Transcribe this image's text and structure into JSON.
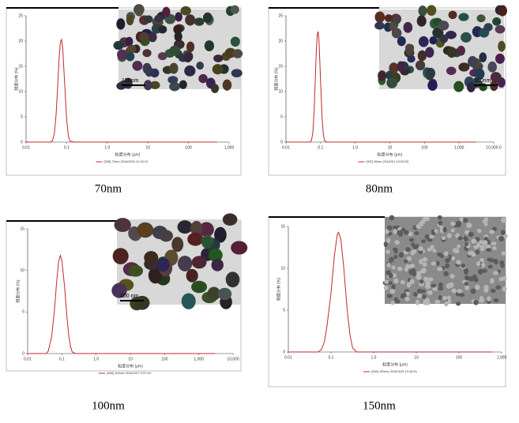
{
  "chart_data": [
    {
      "type": "line",
      "caption": "70nm",
      "x_label": "粒度分布 (μm)",
      "y_label": "频度分布 (%)",
      "inset_label": "100nm",
      "log_x": true,
      "xlim": [
        0.01,
        1000
      ],
      "xticks": [
        0.01,
        0.1,
        {
          "value": 1,
          "label": "1.0"
        },
        10,
        100,
        {
          "value": 1000,
          "label": "1,000"
        }
      ],
      "ylim": [
        0,
        25
      ],
      "yticks": [
        0,
        5,
        10,
        15,
        20,
        25
      ],
      "x": [
        0.01,
        0.04,
        0.045,
        0.05,
        0.055,
        0.06,
        0.065,
        0.07,
        0.075,
        0.08,
        0.09,
        0.1,
        0.11,
        0.12,
        0.15,
        500
      ],
      "series": [
        {
          "name": "[326] 70nm-2016/3/28 12:18:12",
          "color": "#c0282e",
          "values": [
            0,
            0,
            0.3,
            1.8,
            5.5,
            11,
            16.5,
            19.8,
            20.3,
            18.5,
            11,
            4.5,
            1.2,
            0.2,
            0,
            0
          ]
        }
      ]
    },
    {
      "type": "line",
      "caption": "80nm",
      "x_label": "粒度分布 (μm)",
      "y_label": "频度分布 (%)",
      "inset_label": "100nm",
      "log_x": true,
      "xlim": [
        0.01,
        10000
      ],
      "xticks": [
        0.01,
        0.1,
        {
          "value": 1,
          "label": "1.0"
        },
        10,
        100,
        {
          "value": 1000,
          "label": "1,000"
        },
        {
          "value": 10000,
          "label": "10,000.0"
        }
      ],
      "ylim": [
        0,
        25
      ],
      "yticks": [
        0,
        5,
        10,
        15,
        20,
        25
      ],
      "x": [
        0.01,
        0.05,
        0.055,
        0.06,
        0.065,
        0.07,
        0.075,
        0.08,
        0.085,
        0.09,
        0.1,
        0.11,
        0.12,
        0.13,
        0.15,
        3000
      ],
      "series": [
        {
          "name": "[337] 80nm-2016/3/1 10:05:33",
          "color": "#c0282e",
          "values": [
            0,
            0,
            0.4,
            2,
            6,
            12,
            18,
            21.3,
            21.9,
            20,
            12,
            5,
            1.5,
            0.3,
            0,
            0
          ]
        }
      ]
    },
    {
      "type": "line",
      "caption": "100nm",
      "x_label": "粒度分布 (μm)",
      "y_label": "频度分布 (%)",
      "inset_label": "100 nm",
      "log_x": true,
      "xlim": [
        0.01,
        10000
      ],
      "xticks": [
        0.01,
        0.1,
        {
          "value": 1,
          "label": "1.0"
        },
        10,
        100,
        {
          "value": 1000,
          "label": "1,000"
        },
        {
          "value": 10000,
          "label": "10,000"
        }
      ],
      "ylim": [
        0,
        15
      ],
      "yticks": [
        0,
        5,
        10,
        15
      ],
      "x": [
        0.01,
        0.035,
        0.04,
        0.05,
        0.06,
        0.07,
        0.08,
        0.09,
        0.1,
        0.12,
        0.14,
        0.16,
        0.18,
        0.2,
        0.25,
        3000
      ],
      "series": [
        {
          "name": "[348] 100nm-2016/2/27 9:37:54",
          "color": "#c0282e",
          "values": [
            0,
            0,
            0.3,
            2,
            5,
            8.5,
            11,
            11.8,
            11.2,
            8,
            4.5,
            2,
            0.8,
            0.2,
            0,
            0
          ]
        }
      ]
    },
    {
      "type": "line",
      "caption": "150nm",
      "x_label": "粒度分布 (μm)",
      "y_label": "频度分布 (%)",
      "log_x": true,
      "xlim": [
        0.01,
        1000
      ],
      "xticks": [
        0.01,
        0.1,
        {
          "value": 1,
          "label": "1.0"
        },
        10,
        100,
        {
          "value": 1000,
          "label": "1,000"
        }
      ],
      "ylim": [
        0,
        15
      ],
      "yticks": [
        0,
        5,
        10,
        15
      ],
      "x": [
        0.01,
        0.05,
        0.06,
        0.07,
        0.08,
        0.1,
        0.12,
        0.14,
        0.15,
        0.17,
        0.2,
        0.24,
        0.28,
        0.32,
        0.4,
        600
      ],
      "series": [
        {
          "name": "[345] 150nm-2016/3/25 13:18:31",
          "color": "#c0282e",
          "values": [
            0,
            0,
            0.3,
            1.2,
            3,
            7,
            11.5,
            14,
            14.3,
            13.5,
            10,
            5,
            2,
            0.5,
            0,
            0
          ]
        }
      ]
    }
  ]
}
